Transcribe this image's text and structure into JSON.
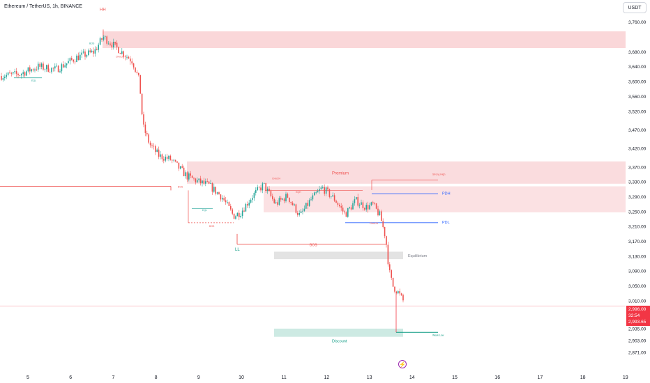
{
  "header": {
    "title": "Ethereum / TetherUS, 1h, BINANCE"
  },
  "toolbar": {
    "currency": "USDT"
  },
  "price_tags": {
    "last": "2,996.00",
    "countdown": "32:54",
    "other": "2,993.65"
  },
  "colors": {
    "up": "#26a69a",
    "down": "#ef5350",
    "supply": "#f8c9cc",
    "demand": "#cdeae3",
    "equilibrium": "#e3e3e3",
    "pd_line": "#2962ff"
  },
  "chart_data": {
    "type": "candlestick",
    "symbol": "ETH/USDT",
    "interval": "1h",
    "x_ticks": [
      "5",
      "6",
      "7",
      "8",
      "9",
      "10",
      "11",
      "12",
      "13",
      "14",
      "15",
      "16",
      "17",
      "18",
      "19"
    ],
    "y_ticks": [
      "3,760.00",
      "3,680.00",
      "3,640.00",
      "3,600.00",
      "3,560.00",
      "3,520.00",
      "3,470.00",
      "3,420.00",
      "3,370.00",
      "3,330.00",
      "3,290.00",
      "3,250.00",
      "3,210.00",
      "3,170.00",
      "3,130.00",
      "3,090.00",
      "3,050.00",
      "3,010.00",
      "2,935.00",
      "2,903.00",
      "2,871.00"
    ],
    "ylim": [
      2860,
      3775
    ],
    "annotations": {
      "hh": "HH",
      "ll": "LL",
      "premium": "Premium",
      "discount": "Discount",
      "equilibrium": "Equilibrium",
      "pdh": "PDH",
      "pdl": "PDL",
      "bos": "BOS",
      "eql": "EQL",
      "eqh": "EQH",
      "choch": "CHoCH",
      "strong_high": "Strong High",
      "weak_low": "Weak Low"
    },
    "zones": [
      {
        "name": "supply-top",
        "from": 3690,
        "to": 3735
      },
      {
        "name": "premium",
        "from": 3325,
        "to": 3385
      },
      {
        "name": "supply-mid",
        "from": 3248,
        "to": 3318
      },
      {
        "name": "equilibrium",
        "from": 3122,
        "to": 3142
      },
      {
        "name": "discount",
        "from": 2913,
        "to": 2935
      }
    ],
    "levels": {
      "pdh": 3298,
      "pdl": 3220
    },
    "path": [
      [
        0,
        3615
      ],
      [
        28,
        3620
      ],
      [
        55,
        3640
      ],
      [
        80,
        3632
      ],
      [
        110,
        3665
      ],
      [
        135,
        3680
      ],
      [
        148,
        3720
      ],
      [
        168,
        3690
      ],
      [
        190,
        3655
      ],
      [
        200,
        3600
      ],
      [
        205,
        3480
      ],
      [
        215,
        3430
      ],
      [
        228,
        3400
      ],
      [
        245,
        3390
      ],
      [
        268,
        3345
      ],
      [
        285,
        3330
      ],
      [
        300,
        3320
      ],
      [
        318,
        3290
      ],
      [
        335,
        3238
      ],
      [
        345,
        3248
      ],
      [
        362,
        3292
      ],
      [
        378,
        3322
      ],
      [
        395,
        3270
      ],
      [
        412,
        3292
      ],
      [
        430,
        3238
      ],
      [
        445,
        3280
      ],
      [
        462,
        3314
      ],
      [
        480,
        3283
      ],
      [
        495,
        3242
      ],
      [
        510,
        3280
      ],
      [
        525,
        3262
      ],
      [
        535,
        3268
      ],
      [
        545,
        3238
      ],
      [
        553,
        3180
      ],
      [
        558,
        3090
      ],
      [
        563,
        3050
      ],
      [
        570,
        3035
      ],
      [
        578,
        3010
      ]
    ]
  }
}
